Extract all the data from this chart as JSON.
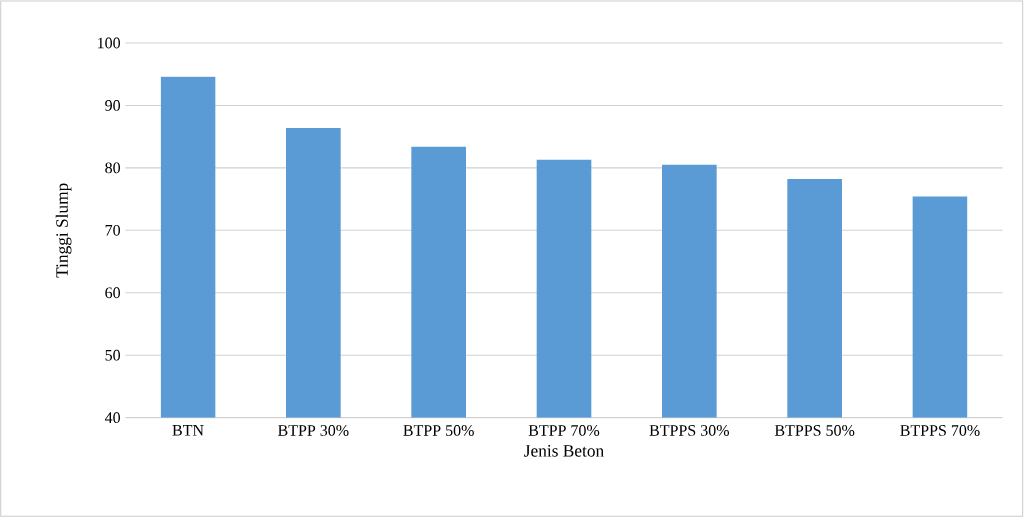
{
  "chart_data": {
    "type": "bar",
    "xlabel": "Jenis Beton",
    "ylabel": "Tinggi Slump",
    "categories": [
      "BTN",
      "BTPP 30%",
      "BTPP 50%",
      "BTPP 70%",
      "BTPPS 30%",
      "BTPPS 50%",
      "BTPPS 70%"
    ],
    "values": [
      94.6,
      86.4,
      83.4,
      81.3,
      80.5,
      78.2,
      75.4
    ],
    "color": "#5b9bd5",
    "ylim": [
      40,
      100
    ],
    "yticks": [
      40,
      50,
      60,
      70,
      80,
      90,
      100
    ],
    "grid": "y"
  }
}
